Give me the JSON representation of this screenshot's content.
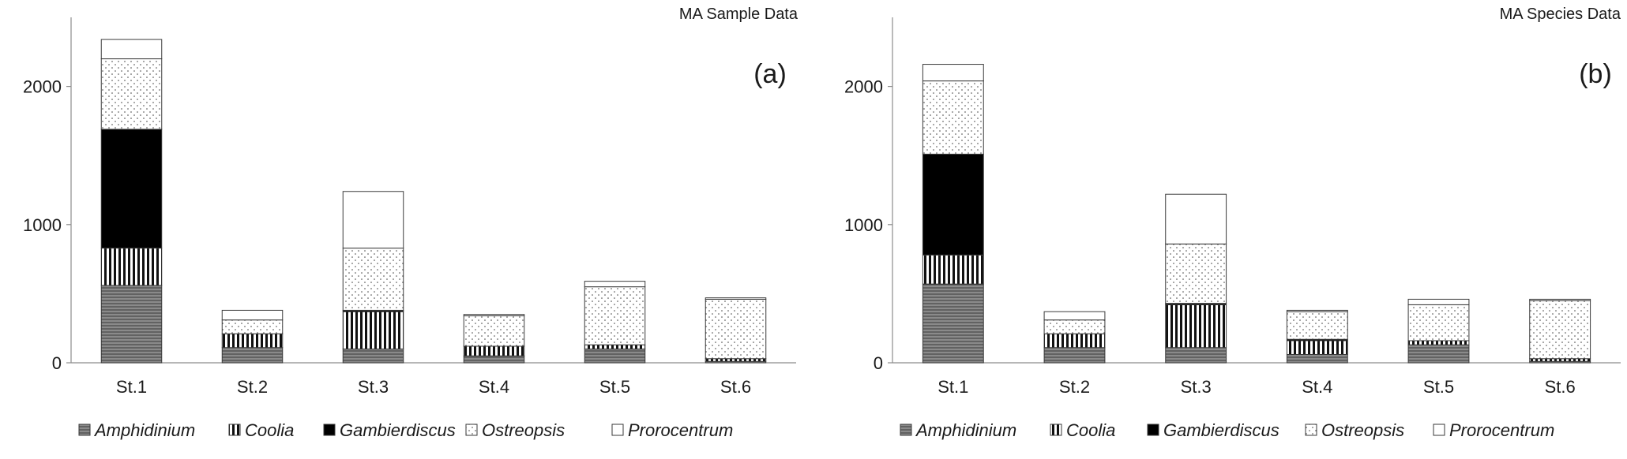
{
  "chart_data": [
    {
      "type": "bar",
      "stacked": true,
      "title": "MA Sample Data",
      "panel_label": "(a)",
      "categories": [
        "St.1",
        "St.2",
        "St.3",
        "St.4",
        "St.5",
        "St.6"
      ],
      "y_ticks": [
        "0",
        "1000",
        "2000"
      ],
      "ylim": [
        0,
        2500
      ],
      "series": [
        {
          "name": "Amphidinium",
          "values": [
            560,
            110,
            100,
            50,
            100,
            10
          ]
        },
        {
          "name": "Coolia",
          "values": [
            270,
            100,
            270,
            70,
            30,
            20
          ]
        },
        {
          "name": "Gambierdiscus",
          "values": [
            860,
            0,
            10,
            0,
            0,
            0
          ]
        },
        {
          "name": "Ostreopsis",
          "values": [
            510,
            100,
            450,
            220,
            420,
            430
          ]
        },
        {
          "name": "Prorocentrum",
          "values": [
            140,
            70,
            410,
            10,
            40,
            10
          ]
        }
      ],
      "legend_position": "bottom"
    },
    {
      "type": "bar",
      "stacked": true,
      "title": "MA Species Data",
      "panel_label": "(b)",
      "categories": [
        "St.1",
        "St.2",
        "St.3",
        "St.4",
        "St.5",
        "St.6"
      ],
      "y_ticks": [
        "0",
        "1000",
        "2000"
      ],
      "ylim": [
        0,
        2500
      ],
      "series": [
        {
          "name": "Amphidinium",
          "values": [
            570,
            110,
            110,
            60,
            130,
            10
          ]
        },
        {
          "name": "Coolia",
          "values": [
            210,
            100,
            310,
            100,
            30,
            20
          ]
        },
        {
          "name": "Gambierdiscus",
          "values": [
            730,
            0,
            10,
            10,
            0,
            0
          ]
        },
        {
          "name": "Ostreopsis",
          "values": [
            530,
            100,
            430,
            200,
            260,
            420
          ]
        },
        {
          "name": "Prorocentrum",
          "values": [
            120,
            60,
            360,
            10,
            40,
            10
          ]
        }
      ],
      "legend_position": "bottom"
    }
  ]
}
